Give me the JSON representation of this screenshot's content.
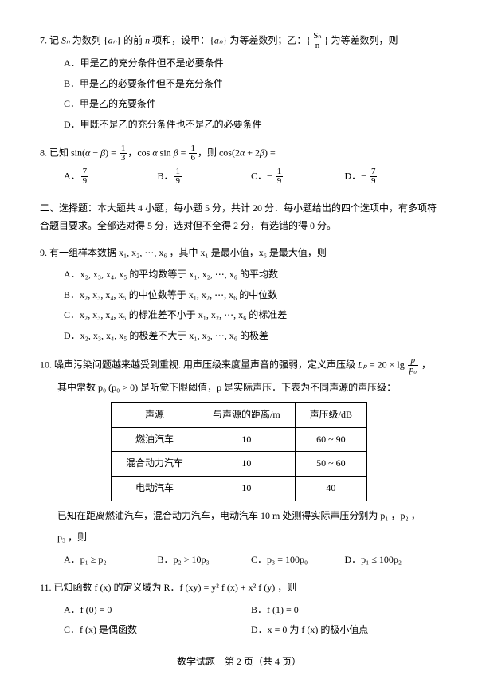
{
  "q7": {
    "stem_pre": "7.  记 ",
    "stem_mid1": " 为数列 {",
    "an": "aₙ",
    "stem_mid2": "} 的前 ",
    "n": "n",
    "stem_mid3": " 项和，设甲：{",
    "stem_mid4": "} 为等差数列；乙：{",
    "stem_mid5": "} 为等差数列，则",
    "Sn": "Sₙ",
    "frac_num": "Sₙ",
    "frac_den": "n",
    "A": "A．甲是乙的充分条件但不是必要条件",
    "B": "B．甲是乙的必要条件但不是充分条件",
    "C": "C．甲是乙的充要条件",
    "D": "D．甲既不是乙的充分条件也不是乙的必要条件"
  },
  "q8": {
    "stem_pre": "8.  已知 sin(",
    "alpha": "α",
    "minus": " − ",
    "beta": "β",
    "stem_mid1": ") = ",
    "f1n": "1",
    "f1d": "3",
    "stem_mid2": "，cos ",
    "stem_mid3": " sin ",
    "stem_mid4": " = ",
    "f2n": "1",
    "f2d": "6",
    "stem_mid5": "，则 cos(2",
    "plus": " + 2",
    "stem_end": ") =",
    "A_pre": "A．",
    "A_n": "7",
    "A_d": "9",
    "B_pre": "B．",
    "B_n": "1",
    "B_d": "9",
    "C_pre": "C．− ",
    "C_n": "1",
    "C_d": "9",
    "D_pre": "D．− ",
    "D_n": "7",
    "D_d": "9"
  },
  "section2": {
    "text": "二、选择题：本大题共 4 小题，每小题 5 分，共计 20 分．每小题给出的四个选项中，有多项符合题目要求。全部选对得 5 分，选对但不全得 2 分，有选错的得 0 分。"
  },
  "q9": {
    "stem": "9.  有一组样本数据 x₁, x₂, ⋯, x₆ ，其中 x₁ 是最小值，x₆ 是最大值，则",
    "A": "A．x₂, x₃, x₄, x₅ 的平均数等于 x₁, x₂, ⋯, x₆ 的平均数",
    "B": "B．x₂, x₃, x₄, x₅ 的中位数等于 x₁, x₂, ⋯, x₆ 的中位数",
    "C": "C．x₂, x₃, x₄, x₅ 的标准差不小于 x₁, x₂, ⋯, x₆ 的标准差",
    "D": "D．x₂, x₃, x₄, x₅ 的极差不大于 x₁, x₂, ⋯, x₆ 的极差"
  },
  "q10": {
    "stem1_pre": "10. 噪声污染问题越来越受到重视. 用声压级来度量声音的强弱，定义声压级 ",
    "Lp": "Lₚ",
    "eq": " = 20 × lg ",
    "fn": "p",
    "fd": "p₀",
    "stem1_end": " ，",
    "stem2": "其中常数 p₀ (p₀ > 0) 是听觉下限阈值，p 是实际声压．下表为不同声源的声压级：",
    "table": {
      "h1": "声源",
      "h2": "与声源的距离/m",
      "h3": "声压级/dB",
      "r1c1": "燃油汽车",
      "r1c2": "10",
      "r1c3": "60 ~ 90",
      "r2c1": "混合动力汽车",
      "r2c2": "10",
      "r2c3": "50 ~ 60",
      "r3c1": "电动汽车",
      "r3c2": "10",
      "r3c3": "40"
    },
    "stem3": "已知在距离燃油汽车，混合动力汽车，电动汽车 10 m 处测得实际声压分别为 p₁ ，p₂ ，",
    "stem4": "p₃ ，则",
    "A": "A．p₁ ≥ p₂",
    "B": "B．p₂ > 10p₃",
    "C": "C．p₃ = 100p₀",
    "D": "D．p₁ ≤ 100p₂"
  },
  "q11": {
    "stem": "11. 已知函数 f (x) 的定义域为 R．f (xy) = y² f (x) + x² f (y) ，则",
    "A": "A．f (0) = 0",
    "B": "B．f (1) = 0",
    "C": "C．f (x) 是偶函数",
    "D": "D．x = 0 为 f (x) 的极小值点"
  },
  "footer": "数学试题　第 2 页（共 4 页）"
}
